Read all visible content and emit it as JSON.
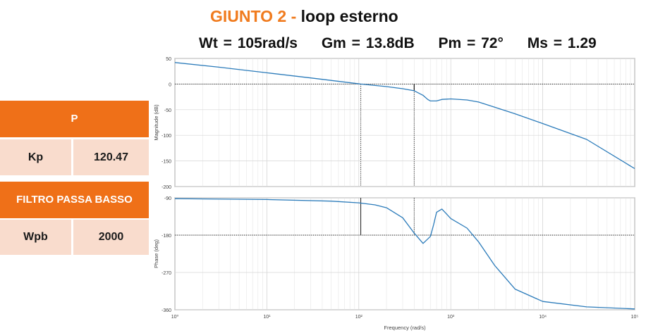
{
  "header": {
    "title_main": "GIUNTO 2",
    "title_dash": "-",
    "title_sub": "loop esterno",
    "metrics": [
      "Wt = 105rad/s",
      "Gm = 13.8dB",
      "Pm = 72°",
      "Ms = 1.29"
    ]
  },
  "params": {
    "p_header": "P",
    "kp_label": "Kp",
    "kp_value": "120.47",
    "filter_header": "FILTRO PASSA BASSO",
    "wpb_label": "Wpb",
    "wpb_value": "2000"
  },
  "colors": {
    "accent": "#ef7018",
    "cell_bg": "#f9dccd",
    "curve": "#2b7bba"
  },
  "chart_data": [
    {
      "type": "line",
      "title": "",
      "xlabel": "",
      "ylabel": "Magnitude (dB)",
      "xscale": "log",
      "xlim": [
        1,
        100000
      ],
      "ylim": [
        -200,
        50
      ],
      "yticks": [
        50,
        0,
        -50,
        -100,
        -150,
        -200
      ],
      "ytick_labels": [
        "50",
        "0",
        "-50",
        "-100",
        "-150",
        "-200"
      ],
      "grid": true,
      "reference_line_y": 0,
      "markers": [
        {
          "x": 105,
          "y_from": 0,
          "y_to": -200
        },
        {
          "x": 400,
          "y_from": 0,
          "y_to": -200
        }
      ],
      "series": [
        {
          "x": [
            1,
            3,
            10,
            30,
            105,
            200,
            300,
            400,
            500,
            560,
            600,
            700,
            800,
            1000,
            1500,
            2000,
            3000,
            5000,
            10000,
            30000,
            100000
          ],
          "y": [
            42,
            33,
            22,
            12,
            0,
            -5,
            -9,
            -13,
            -22,
            -30,
            -33,
            -33,
            -30,
            -29,
            -31,
            -35,
            -45,
            -58,
            -77,
            -108,
            -165
          ]
        }
      ]
    },
    {
      "type": "line",
      "title": "",
      "xlabel": "Frequency  (rad/s)",
      "ylabel": "Phase (deg)",
      "xscale": "log",
      "xlim": [
        1,
        100000
      ],
      "ylim": [
        -360,
        -90
      ],
      "yticks": [
        -90,
        -180,
        -270,
        -360
      ],
      "ytick_labels": [
        "-90",
        "-180",
        "-270",
        "-360"
      ],
      "xticks": [
        1,
        10,
        100,
        1000,
        10000,
        100000
      ],
      "xtick_labels": [
        "10⁰",
        "10¹",
        "10²",
        "10³",
        "10⁴",
        "10⁵"
      ],
      "grid": true,
      "reference_line_y": -180,
      "markers": [
        {
          "x": 105,
          "y_from": -90,
          "y_to": -180
        },
        {
          "x": 400,
          "y_from": -90,
          "y_to": -180
        }
      ],
      "series": [
        {
          "x": [
            1,
            10,
            50,
            100,
            150,
            200,
            300,
            400,
            500,
            600,
            650,
            700,
            800,
            1000,
            1500,
            2000,
            3000,
            5000,
            10000,
            30000,
            100000
          ],
          "y": [
            -92,
            -94,
            -98,
            -102,
            -107,
            -114,
            -138,
            -175,
            -200,
            -183,
            -155,
            -125,
            -117,
            -140,
            -163,
            -196,
            -253,
            -310,
            -340,
            -353,
            -358
          ]
        }
      ]
    }
  ]
}
